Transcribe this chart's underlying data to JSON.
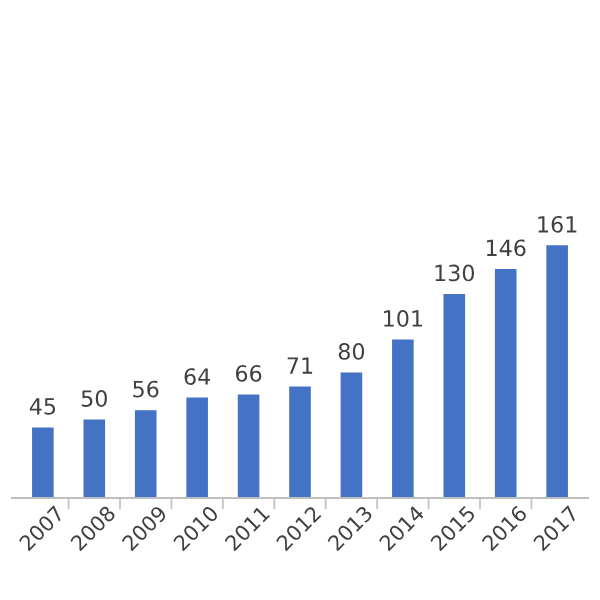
{
  "chart_data": {
    "type": "bar",
    "categories": [
      "2007",
      "2008",
      "2009",
      "2010",
      "2011",
      "2012",
      "2013",
      "2014",
      "2015",
      "2016",
      "2017"
    ],
    "values": [
      45,
      50,
      56,
      64,
      66,
      71,
      80,
      101,
      130,
      146,
      161
    ],
    "color": "#4472c4",
    "data_labels": true,
    "grid": false,
    "legend": false
  }
}
